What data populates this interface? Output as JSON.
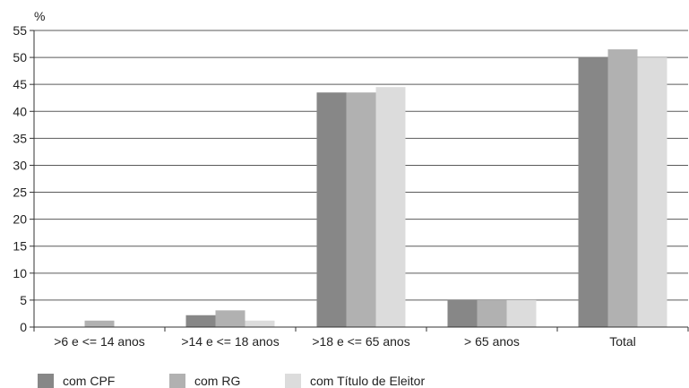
{
  "chart_data": {
    "type": "bar",
    "y_unit_label": "%",
    "categories": [
      ">6 e <= 14 anos",
      ">14 e <= 18 anos",
      ">18 e <= 65 anos",
      "> 65 anos",
      "Total"
    ],
    "series": [
      {
        "name": "com CPF",
        "color": "#878787",
        "values": [
          0.0,
          2.2,
          43.5,
          5.0,
          50.0
        ]
      },
      {
        "name": "com RG",
        "color": "#b1b1b1",
        "values": [
          1.2,
          3.1,
          43.5,
          5.0,
          51.5
        ]
      },
      {
        "name": "com Título de Eleitor",
        "color": "#dcdcdc",
        "values": [
          0.0,
          1.2,
          44.5,
          5.0,
          50.0
        ]
      }
    ],
    "ylim": [
      0,
      55
    ],
    "yticks": [
      0,
      5,
      10,
      15,
      20,
      25,
      30,
      35,
      40,
      45,
      50,
      55
    ],
    "grid": true,
    "legend_position": "bottom"
  }
}
